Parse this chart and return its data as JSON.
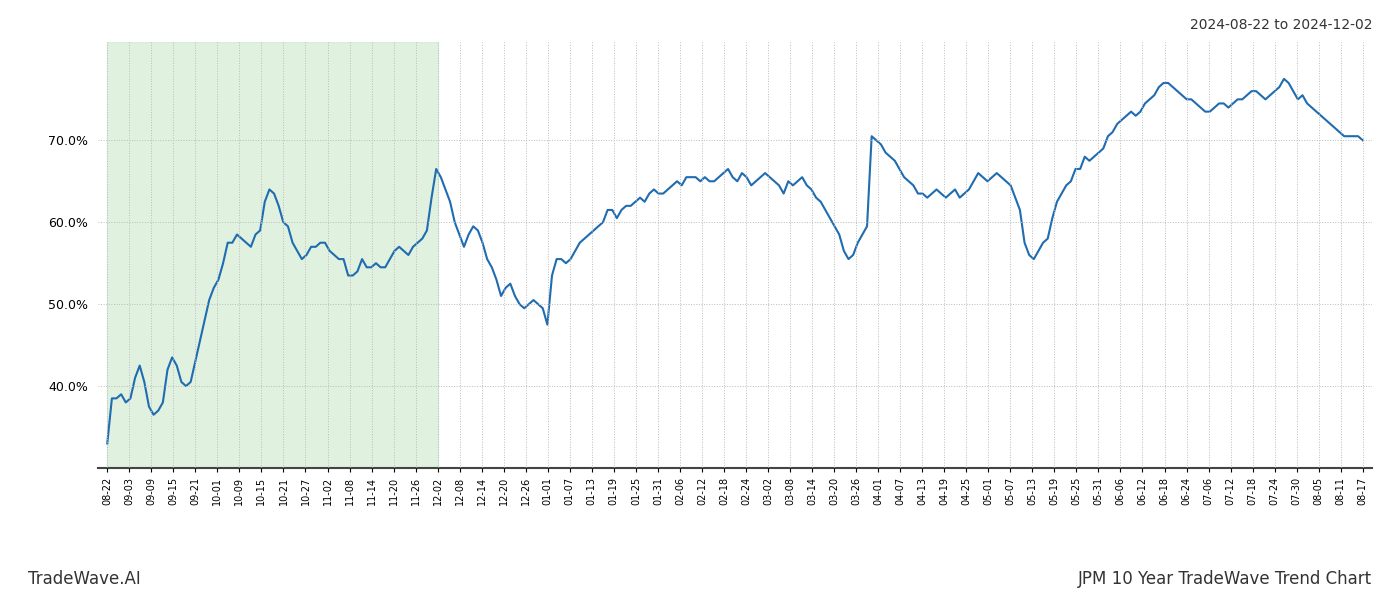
{
  "title_top_right": "2024-08-22 to 2024-12-02",
  "title_bottom_left": "TradeWave.AI",
  "title_bottom_right": "JPM 10 Year TradeWave Trend Chart",
  "line_color": "#1f6cb0",
  "line_width": 1.5,
  "shaded_region_color": "#c8e6c8",
  "shaded_region_alpha": 0.55,
  "background_color": "#ffffff",
  "grid_color": "#bbbbbb",
  "grid_style": ":",
  "ylim": [
    30,
    82
  ],
  "yticks": [
    40.0,
    50.0,
    60.0,
    70.0
  ],
  "x_labels": [
    "08-22",
    "09-03",
    "09-09",
    "09-15",
    "09-21",
    "10-01",
    "10-09",
    "10-15",
    "10-21",
    "10-27",
    "11-02",
    "11-08",
    "11-14",
    "11-20",
    "11-26",
    "12-02",
    "12-08",
    "12-14",
    "12-20",
    "12-26",
    "01-01",
    "01-07",
    "01-13",
    "01-19",
    "01-25",
    "01-31",
    "02-06",
    "02-12",
    "02-18",
    "02-24",
    "03-02",
    "03-08",
    "03-14",
    "03-20",
    "03-26",
    "04-01",
    "04-07",
    "04-13",
    "04-19",
    "04-25",
    "05-01",
    "05-07",
    "05-13",
    "05-19",
    "05-25",
    "05-31",
    "06-06",
    "06-12",
    "06-18",
    "06-24",
    "07-06",
    "07-12",
    "07-18",
    "07-24",
    "07-30",
    "08-05",
    "08-11",
    "08-17"
  ],
  "shaded_x_start_label": "08-22",
  "shaded_x_end_label": "12-02",
  "y_values": [
    33.0,
    38.5,
    38.5,
    39.0,
    38.0,
    38.5,
    41.0,
    42.5,
    40.5,
    37.5,
    36.5,
    37.0,
    38.0,
    42.0,
    43.5,
    42.5,
    40.5,
    40.0,
    40.5,
    43.0,
    45.5,
    48.0,
    50.5,
    52.0,
    53.0,
    55.0,
    57.5,
    57.5,
    58.5,
    58.0,
    57.5,
    57.0,
    58.5,
    59.0,
    62.5,
    64.0,
    63.5,
    62.0,
    60.0,
    59.5,
    57.5,
    56.5,
    55.5,
    56.0,
    57.0,
    57.0,
    57.5,
    57.5,
    56.5,
    56.0,
    55.5,
    55.5,
    53.5,
    53.5,
    54.0,
    55.5,
    54.5,
    54.5,
    55.0,
    54.5,
    54.5,
    55.5,
    56.5,
    57.0,
    56.5,
    56.0,
    57.0,
    57.5,
    58.0,
    59.0,
    63.0,
    66.5,
    65.5,
    64.0,
    62.5,
    60.0,
    58.5,
    57.0,
    58.5,
    59.5,
    59.0,
    57.5,
    55.5,
    54.5,
    53.0,
    51.0,
    52.0,
    52.5,
    51.0,
    50.0,
    49.5,
    50.0,
    50.5,
    50.0,
    49.5,
    47.5,
    53.5,
    55.5,
    55.5,
    55.0,
    55.5,
    56.5,
    57.5,
    58.0,
    58.5,
    59.0,
    59.5,
    60.0,
    61.5,
    61.5,
    60.5,
    61.5,
    62.0,
    62.0,
    62.5,
    63.0,
    62.5,
    63.5,
    64.0,
    63.5,
    63.5,
    64.0,
    64.5,
    65.0,
    64.5,
    65.5,
    65.5,
    65.5,
    65.0,
    65.5,
    65.0,
    65.0,
    65.5,
    66.0,
    66.5,
    65.5,
    65.0,
    66.0,
    65.5,
    64.5,
    65.0,
    65.5,
    66.0,
    65.5,
    65.0,
    64.5,
    63.5,
    65.0,
    64.5,
    65.0,
    65.5,
    64.5,
    64.0,
    63.0,
    62.5,
    61.5,
    60.5,
    59.5,
    58.5,
    56.5,
    55.5,
    56.0,
    57.5,
    58.5,
    59.5,
    70.5,
    70.0,
    69.5,
    68.5,
    68.0,
    67.5,
    66.5,
    65.5,
    65.0,
    64.5,
    63.5,
    63.5,
    63.0,
    63.5,
    64.0,
    63.5,
    63.0,
    63.5,
    64.0,
    63.0,
    63.5,
    64.0,
    65.0,
    66.0,
    65.5,
    65.0,
    65.5,
    66.0,
    65.5,
    65.0,
    64.5,
    63.0,
    61.5,
    57.5,
    56.0,
    55.5,
    56.5,
    57.5,
    58.0,
    60.5,
    62.5,
    63.5,
    64.5,
    65.0,
    66.5,
    66.5,
    68.0,
    67.5,
    68.0,
    68.5,
    69.0,
    70.5,
    71.0,
    72.0,
    72.5,
    73.0,
    73.5,
    73.0,
    73.5,
    74.5,
    75.0,
    75.5,
    76.5,
    77.0,
    77.0,
    76.5,
    76.0,
    75.5,
    75.0,
    75.0,
    74.5,
    74.0,
    73.5,
    73.5,
    74.0,
    74.5,
    74.5,
    74.0,
    74.5,
    75.0,
    75.0,
    75.5,
    76.0,
    76.0,
    75.5,
    75.0,
    75.5,
    76.0,
    76.5,
    77.5,
    77.0,
    76.0,
    75.0,
    75.5,
    74.5,
    74.0,
    73.5,
    73.0,
    72.5,
    72.0,
    71.5,
    71.0,
    70.5,
    70.5,
    70.5,
    70.5,
    70.0
  ]
}
